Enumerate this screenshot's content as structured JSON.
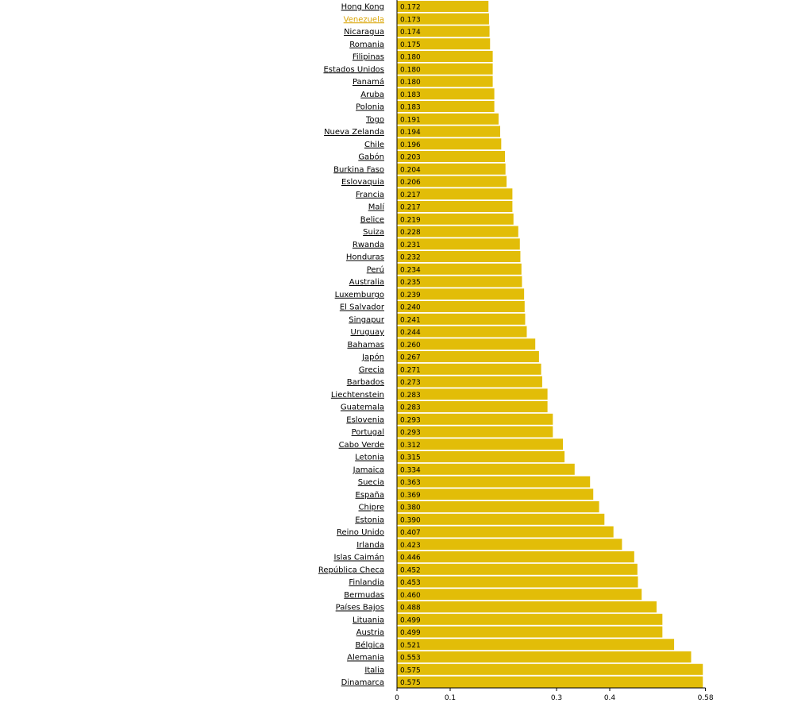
{
  "chart_data": {
    "type": "bar",
    "orientation": "horizontal",
    "categories": [
      "Hong Kong",
      "Venezuela",
      "Nicaragua",
      "Romania",
      "Filipinas",
      "Estados Unidos",
      "Panamá",
      "Aruba",
      "Polonia",
      "Togo",
      "Nueva Zelanda",
      "Chile",
      "Gabón",
      "Burkina Faso",
      "Eslovaquia",
      "Francia",
      "Malí",
      "Belice",
      "Suiza",
      "Rwanda",
      "Honduras",
      "Perú",
      "Australia",
      "Luxemburgo",
      "El Salvador",
      "Singapur",
      "Uruguay",
      "Bahamas",
      "Japón",
      "Grecia",
      "Barbados",
      "Liechtenstein",
      "Guatemala",
      "Eslovenia",
      "Portugal",
      "Cabo Verde",
      "Letonia",
      "Jamaica",
      "Suecia",
      "España",
      "Chipre",
      "Estonia",
      "Reino Unido",
      "Irlanda",
      "Islas Caimán",
      "República Checa",
      "Finlandia",
      "Bermudas",
      "Países Bajos",
      "Lituania",
      "Austria",
      "Bélgica",
      "Alemania",
      "Italia",
      "Dinamarca"
    ],
    "values": [
      0.172,
      0.173,
      0.174,
      0.175,
      0.18,
      0.18,
      0.18,
      0.183,
      0.183,
      0.191,
      0.194,
      0.196,
      0.203,
      0.204,
      0.206,
      0.217,
      0.217,
      0.219,
      0.228,
      0.231,
      0.232,
      0.234,
      0.235,
      0.239,
      0.24,
      0.241,
      0.244,
      0.26,
      0.267,
      0.271,
      0.273,
      0.283,
      0.283,
      0.293,
      0.293,
      0.312,
      0.315,
      0.334,
      0.363,
      0.369,
      0.38,
      0.39,
      0.407,
      0.423,
      0.446,
      0.452,
      0.453,
      0.46,
      0.488,
      0.499,
      0.499,
      0.521,
      0.553,
      0.575,
      0.575
    ],
    "value_labels": [
      "0.172",
      "0.173",
      "0.174",
      "0.175",
      "0.180",
      "0.180",
      "0.180",
      "0.183",
      "0.183",
      "0.191",
      "0.194",
      "0.196",
      "0.203",
      "0.204",
      "0.206",
      "0.217",
      "0.217",
      "0.219",
      "0.228",
      "0.231",
      "0.232",
      "0.234",
      "0.235",
      "0.239",
      "0.240",
      "0.241",
      "0.244",
      "0.260",
      "0.267",
      "0.271",
      "0.273",
      "0.283",
      "0.283",
      "0.293",
      "0.293",
      "0.312",
      "0.315",
      "0.334",
      "0.363",
      "0.369",
      "0.380",
      "0.390",
      "0.407",
      "0.423",
      "0.446",
      "0.452",
      "0.453",
      "0.460",
      "0.488",
      "0.499",
      "0.499",
      "0.521",
      "0.553",
      "0.575",
      "0.575"
    ],
    "highlight_category": "Venezuela",
    "xlim": [
      0,
      0.58
    ],
    "x_ticks": [
      0,
      0.1,
      0.3,
      0.4,
      0.58
    ],
    "x_tick_labels": [
      "0",
      "0.1",
      "0.3",
      "0.4",
      "0.58"
    ],
    "title": "",
    "xlabel": "",
    "ylabel": "",
    "grid": false,
    "colors": {
      "bar": "#e2bd08",
      "highlight_text": "#d9a300",
      "label_text": "#000000",
      "axis": "#000000"
    }
  }
}
